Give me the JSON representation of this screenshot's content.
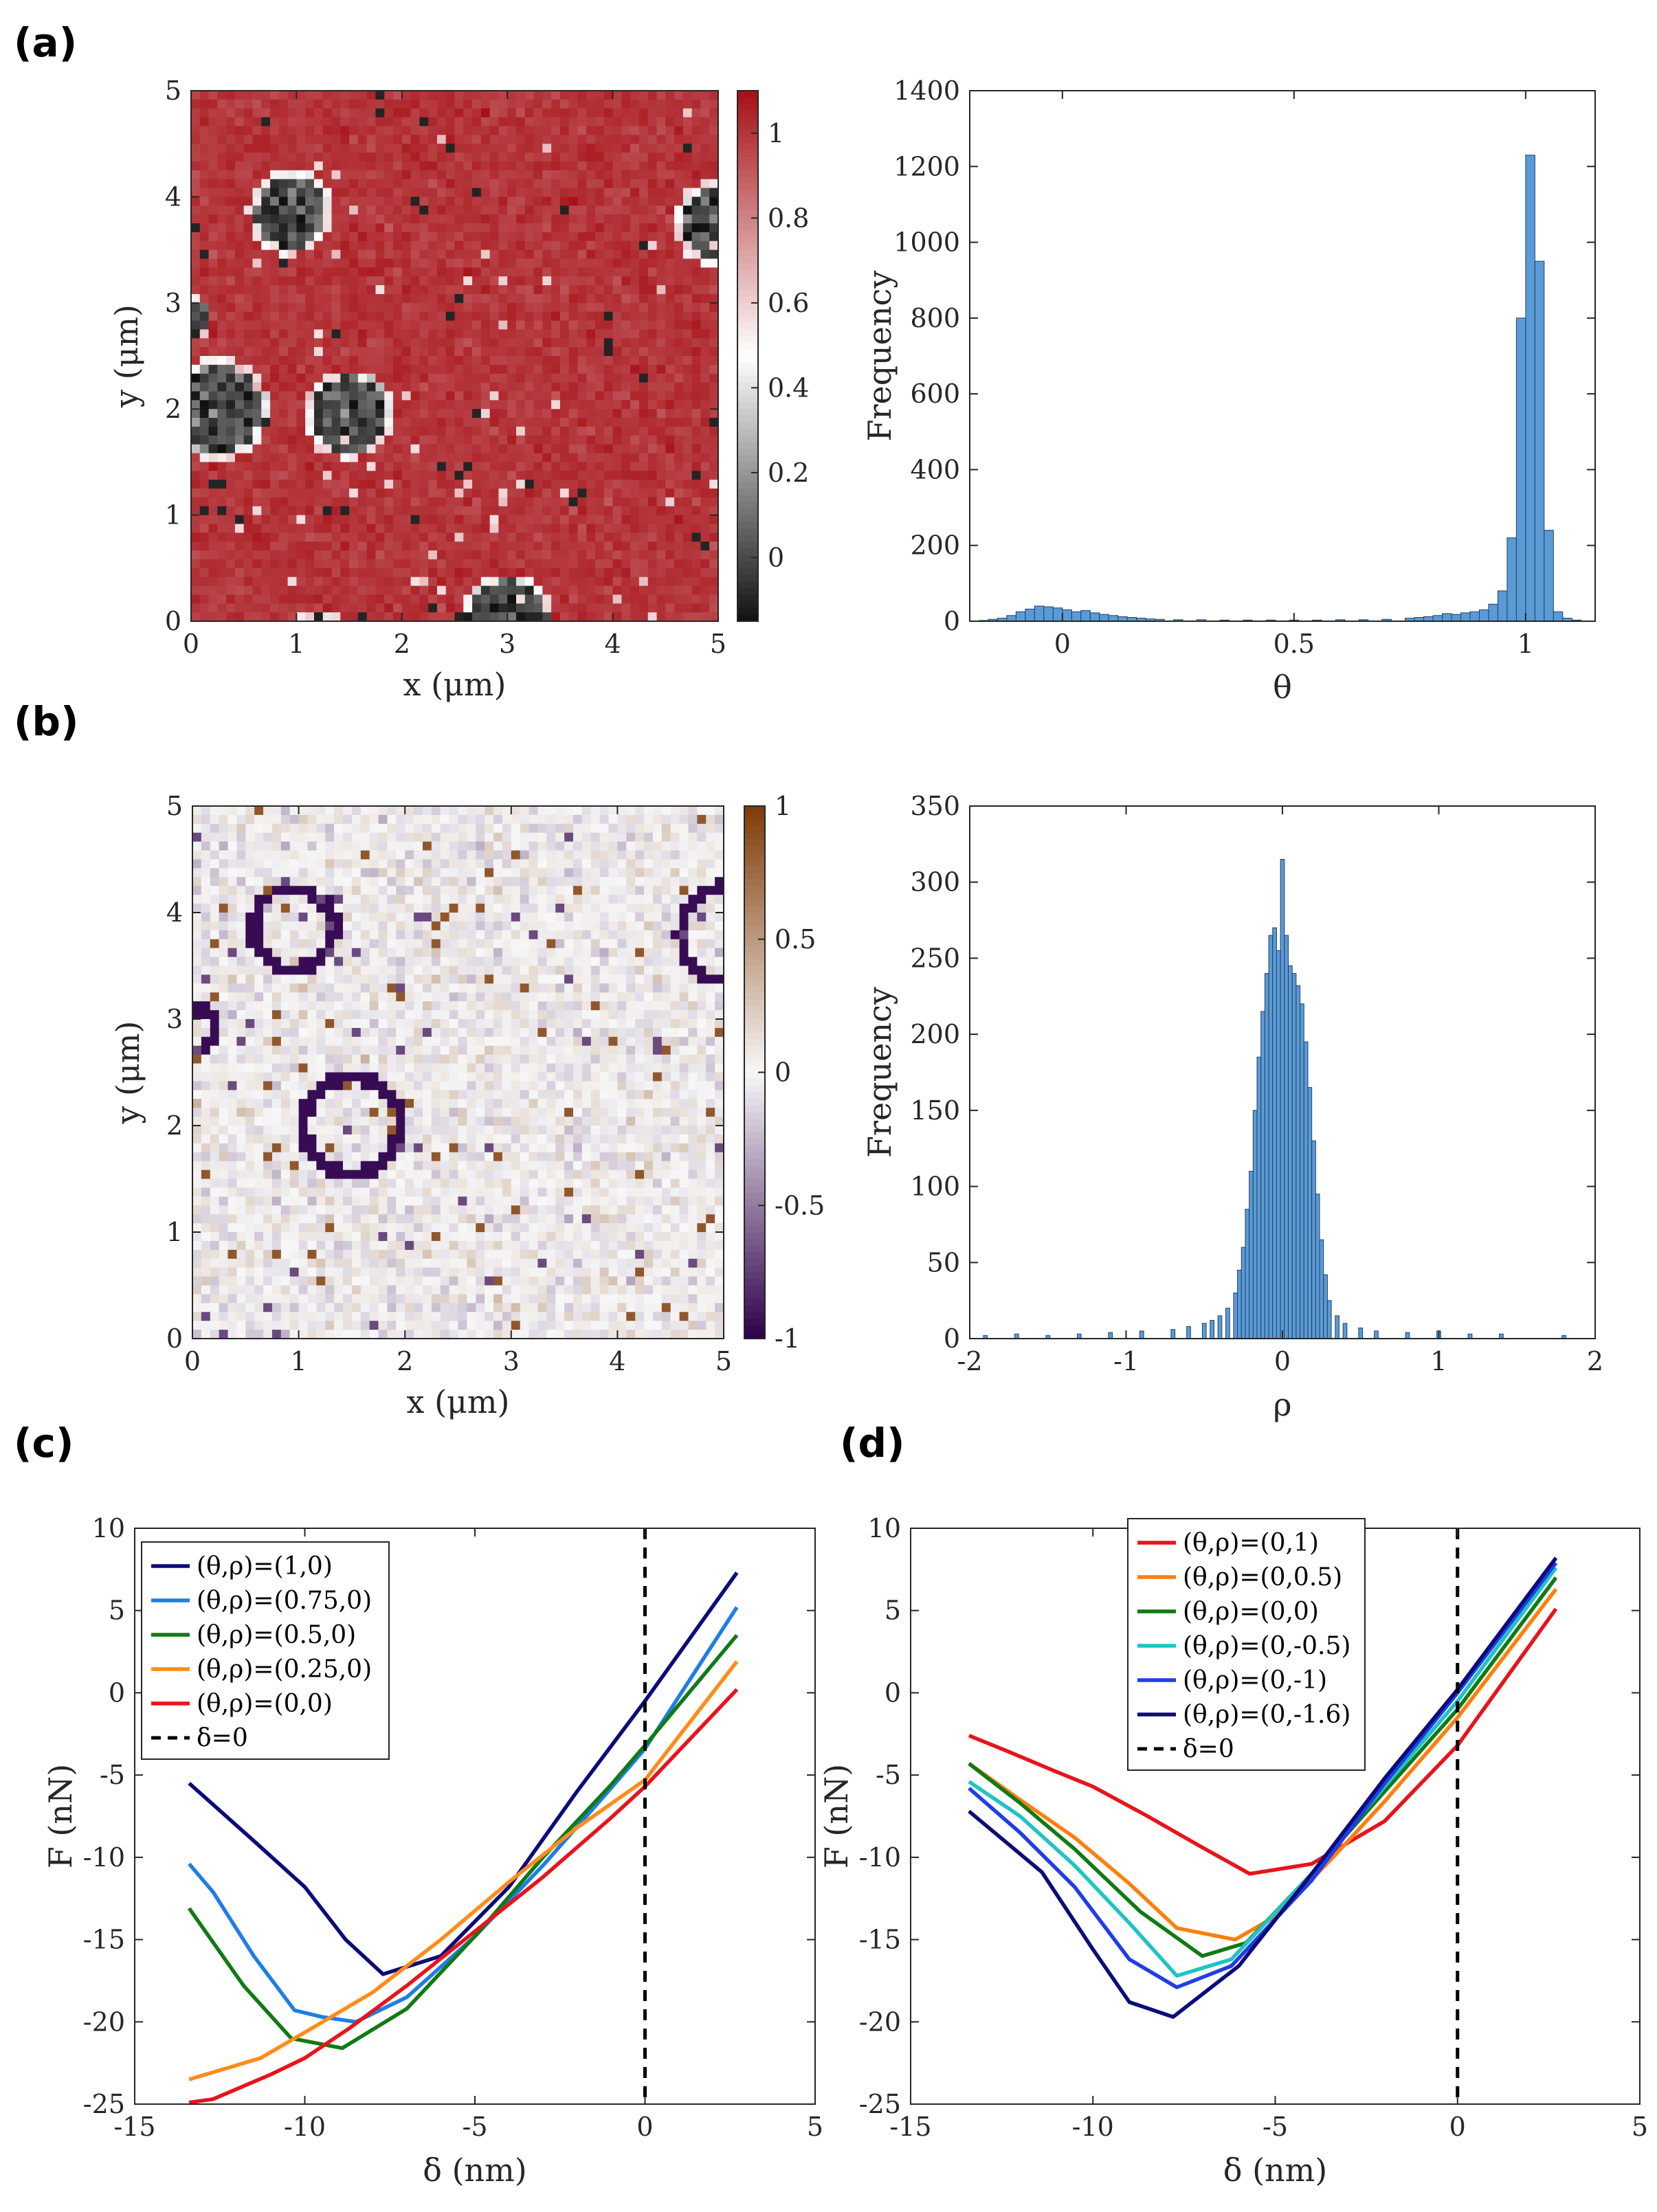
{
  "panels": [
    {
      "id": "a",
      "label": "(a)"
    },
    {
      "id": "b",
      "label": "(b)"
    },
    {
      "id": "c",
      "label": "(c)"
    },
    {
      "id": "d",
      "label": "(d)"
    }
  ],
  "chart_data": [
    {
      "panel": "a-map",
      "type": "heatmap",
      "xlabel": "x (μm)",
      "ylabel": "y (μm)",
      "xlim": [
        0,
        5
      ],
      "ylim": [
        0,
        5
      ],
      "xticks": [
        "0",
        "1",
        "2",
        "3",
        "4",
        "5"
      ],
      "yticks": [
        "0",
        "1",
        "2",
        "3",
        "4",
        "5"
      ],
      "colorbar": {
        "ticks": [
          "0",
          "0.2",
          "0.4",
          "0.6",
          "0.8",
          "1"
        ],
        "range": [
          -0.15,
          1.1
        ],
        "colors": [
          "#111111",
          "#ffffff",
          "#a50f15"
        ]
      },
      "grid": 60,
      "base_value": 1.0,
      "holes": [
        {
          "x": 0.25,
          "y": 2.0,
          "r": 0.5
        },
        {
          "x": 1.5,
          "y": 1.95,
          "r": 0.42
        },
        {
          "x": 0.95,
          "y": 3.85,
          "r": 0.4
        },
        {
          "x": 5.05,
          "y": 3.75,
          "r": 0.45
        },
        {
          "x": 0.0,
          "y": 2.85,
          "r": 0.2
        },
        {
          "x": 3.0,
          "y": 0.0,
          "r": 0.45
        },
        {
          "x": 1.2,
          "y": -0.25,
          "r": 0.35
        }
      ]
    },
    {
      "panel": "a-hist",
      "type": "bar",
      "xlabel": "θ",
      "ylabel": "Frequency",
      "xlim": [
        -0.2,
        1.15
      ],
      "ylim": [
        0,
        1400
      ],
      "xticks": [
        "0",
        "0.5",
        "1"
      ],
      "yticks": [
        "0",
        "200",
        "400",
        "600",
        "800",
        "1000",
        "1200",
        "1400"
      ],
      "bin_width": 0.02,
      "bins_x": [
        -0.17,
        -0.15,
        -0.13,
        -0.11,
        -0.09,
        -0.07,
        -0.05,
        -0.03,
        -0.01,
        0.01,
        0.03,
        0.05,
        0.07,
        0.09,
        0.11,
        0.13,
        0.15,
        0.17,
        0.19,
        0.21,
        0.25,
        0.3,
        0.35,
        0.4,
        0.45,
        0.5,
        0.55,
        0.6,
        0.65,
        0.7,
        0.75,
        0.77,
        0.79,
        0.81,
        0.83,
        0.85,
        0.87,
        0.89,
        0.91,
        0.93,
        0.95,
        0.97,
        0.99,
        1.01,
        1.03,
        1.05,
        1.07,
        1.09,
        1.11
      ],
      "values": [
        2,
        5,
        8,
        15,
        25,
        32,
        40,
        38,
        35,
        30,
        25,
        28,
        22,
        18,
        15,
        12,
        10,
        8,
        6,
        5,
        4,
        4,
        3,
        3,
        3,
        3,
        3,
        4,
        4,
        5,
        8,
        10,
        12,
        15,
        20,
        18,
        22,
        25,
        30,
        45,
        80,
        220,
        800,
        1230,
        950,
        240,
        25,
        8,
        3
      ]
    },
    {
      "panel": "b-map",
      "type": "heatmap",
      "xlabel": "x (μm)",
      "ylabel": "y (μm)",
      "xlim": [
        0,
        5
      ],
      "ylim": [
        0,
        5
      ],
      "xticks": [
        "0",
        "1",
        "2",
        "3",
        "4",
        "5"
      ],
      "yticks": [
        "0",
        "1",
        "2",
        "3",
        "4",
        "5"
      ],
      "colorbar": {
        "ticks": [
          "-1",
          "-0.5",
          "0",
          "0.5",
          "1"
        ],
        "range": [
          -1,
          1
        ],
        "colors": [
          "#2d004b",
          "#f7f7f7",
          "#7f3b08"
        ]
      },
      "grid": 60,
      "rings": [
        {
          "x": 0.95,
          "y": 3.85,
          "r": 0.38
        },
        {
          "x": 1.5,
          "y": 2.0,
          "r": 0.45
        },
        {
          "x": 5.05,
          "y": 3.8,
          "r": 0.45
        },
        {
          "x": 0.0,
          "y": 2.9,
          "r": 0.2
        }
      ]
    },
    {
      "panel": "b-hist",
      "type": "bar",
      "xlabel": "ρ",
      "ylabel": "Frequency",
      "xlim": [
        -2,
        2
      ],
      "ylim": [
        0,
        350
      ],
      "xticks": [
        "-2",
        "-1",
        "0",
        "1",
        "2"
      ],
      "yticks": [
        "0",
        "50",
        "100",
        "150",
        "200",
        "250",
        "300",
        "350"
      ],
      "bin_width": 0.025,
      "bins_x": [
        -1.9,
        -1.7,
        -1.5,
        -1.3,
        -1.1,
        -0.9,
        -0.7,
        -0.6,
        -0.5,
        -0.45,
        -0.4,
        -0.35,
        -0.3,
        -0.275,
        -0.25,
        -0.225,
        -0.2,
        -0.175,
        -0.15,
        -0.125,
        -0.1,
        -0.075,
        -0.05,
        -0.025,
        0.0,
        0.025,
        0.05,
        0.075,
        0.1,
        0.125,
        0.15,
        0.175,
        0.2,
        0.225,
        0.25,
        0.275,
        0.3,
        0.35,
        0.4,
        0.5,
        0.6,
        0.8,
        1.0,
        1.2,
        1.4,
        1.8
      ],
      "values": [
        2,
        3,
        2,
        3,
        4,
        5,
        6,
        8,
        10,
        12,
        15,
        20,
        30,
        45,
        60,
        85,
        110,
        150,
        185,
        215,
        240,
        265,
        270,
        255,
        315,
        265,
        245,
        240,
        232,
        220,
        195,
        165,
        130,
        95,
        65,
        42,
        25,
        15,
        10,
        7,
        5,
        4,
        5,
        3,
        3,
        2
      ]
    },
    {
      "panel": "c",
      "type": "line",
      "xlabel": "δ (nm)",
      "ylabel": "F (nN)",
      "xlim": [
        -15,
        5
      ],
      "ylim": [
        -25,
        10
      ],
      "xticks": [
        "-15",
        "-10",
        "-5",
        "0",
        "5"
      ],
      "yticks": [
        "-25",
        "-20",
        "-15",
        "-10",
        "-5",
        "0",
        "5",
        "10"
      ],
      "legend_position": "top-left",
      "vline": {
        "x": 0,
        "label": "δ=0"
      },
      "series": [
        {
          "name": "(θ,ρ)=(1,0)",
          "color": "#0b0b7a",
          "x": [
            -13.4,
            -11.5,
            -10,
            -8.8,
            -7.7,
            -6,
            -4,
            -2,
            0,
            2.7
          ],
          "y": [
            -5.5,
            -9,
            -11.8,
            -15,
            -17.1,
            -16,
            -11.8,
            -6,
            -0.5,
            7.3
          ]
        },
        {
          "name": "(θ,ρ)=(0.75,0)",
          "color": "#1f7ee6",
          "x": [
            -13.4,
            -12.7,
            -11.5,
            -10.3,
            -9.5,
            -8.5,
            -7,
            -5,
            -3,
            -1,
            0,
            2.7
          ],
          "y": [
            -10.4,
            -12.1,
            -16,
            -19.3,
            -19.7,
            -20,
            -18.5,
            -14.8,
            -10.5,
            -5.8,
            -3.4,
            5.2
          ]
        },
        {
          "name": "(θ,ρ)=(0.5,0)",
          "color": "#117a14",
          "x": [
            -13.4,
            -11.8,
            -10.4,
            -8.9,
            -7,
            -5,
            -3,
            -1,
            0,
            2.7
          ],
          "y": [
            -13.1,
            -17.8,
            -21,
            -21.6,
            -19.2,
            -14.8,
            -10,
            -5.6,
            -3.2,
            3.5
          ]
        },
        {
          "name": "(θ,ρ)=(0.25,0)",
          "color": "#ff8c1a",
          "x": [
            -13.4,
            -11.3,
            -9.8,
            -8,
            -6,
            -4,
            -2,
            0,
            2.7
          ],
          "y": [
            -23.5,
            -22.2,
            -20.4,
            -18.2,
            -15,
            -11.5,
            -8.2,
            -5.3,
            1.9
          ]
        },
        {
          "name": "(θ,ρ)=(0,0)",
          "color": "#e8141c",
          "x": [
            -13.4,
            -12.7,
            -11,
            -10,
            -8.7,
            -7,
            -5,
            -3,
            -1,
            0,
            2.7
          ],
          "y": [
            -24.9,
            -24.7,
            -23.2,
            -22.2,
            -20.4,
            -17.8,
            -14.5,
            -11.2,
            -7.6,
            -5.7,
            0.2
          ]
        }
      ]
    },
    {
      "panel": "d",
      "type": "line",
      "xlabel": "δ (nm)",
      "ylabel": "F (nN)",
      "xlim": [
        -15,
        5
      ],
      "ylim": [
        -25,
        10
      ],
      "xticks": [
        "-15",
        "-10",
        "-5",
        "0",
        "5"
      ],
      "yticks": [
        "-25",
        "-20",
        "-15",
        "-10",
        "-5",
        "0",
        "5",
        "10"
      ],
      "legend_position": "top",
      "vline": {
        "x": 0,
        "label": "δ=0"
      },
      "series": [
        {
          "name": "(θ,ρ)=(0,1)",
          "color": "#e8141c",
          "x": [
            -13.4,
            -12.4,
            -11,
            -10,
            -8.5,
            -7,
            -5.7,
            -4,
            -2,
            0,
            2.7
          ],
          "y": [
            -2.6,
            -3.5,
            -4.8,
            -5.7,
            -7.5,
            -9.4,
            -11,
            -10.4,
            -7.8,
            -3.2,
            5.1
          ]
        },
        {
          "name": "(θ,ρ)=(0,0.5)",
          "color": "#ff7f0e",
          "x": [
            -13.4,
            -12,
            -10.5,
            -9,
            -7.7,
            -6.1,
            -5,
            -3.5,
            -2,
            0,
            2.7
          ],
          "y": [
            -4.3,
            -6.5,
            -8.8,
            -11.6,
            -14.3,
            -15,
            -13.6,
            -10.2,
            -6.6,
            -1.5,
            6.3
          ]
        },
        {
          "name": "(θ,ρ)=(0,0)",
          "color": "#117a14",
          "x": [
            -13.4,
            -12,
            -10.5,
            -8.7,
            -7,
            -5.8,
            -4,
            -2,
            0,
            2.7
          ],
          "y": [
            -4.3,
            -6.7,
            -9.5,
            -13.3,
            -16,
            -15.2,
            -11,
            -6,
            -1,
            7.0
          ]
        },
        {
          "name": "(θ,ρ)=(0,-0.5)",
          "color": "#1fc4c4",
          "x": [
            -13.4,
            -12,
            -10.5,
            -9,
            -7.7,
            -6.2,
            -4,
            -2,
            0,
            2.7
          ],
          "y": [
            -5.4,
            -7.5,
            -10.5,
            -14,
            -17.2,
            -16.2,
            -11,
            -5.7,
            -0.5,
            7.6
          ]
        },
        {
          "name": "(θ,ρ)=(0,-1)",
          "color": "#1f3ee8",
          "x": [
            -13.4,
            -12,
            -10.5,
            -9,
            -7.7,
            -6.2,
            -4,
            -2,
            0,
            2.7
          ],
          "y": [
            -5.8,
            -8.5,
            -11.8,
            -16.2,
            -17.9,
            -16.6,
            -11.4,
            -5.5,
            0,
            7.9
          ]
        },
        {
          "name": "(θ,ρ)=(0,-1.6)",
          "color": "#0b0b7a",
          "x": [
            -13.4,
            -11.4,
            -10,
            -9,
            -7.8,
            -6,
            -4,
            -2,
            0,
            2.7
          ],
          "y": [
            -7.2,
            -10.9,
            -15.6,
            -18.8,
            -19.7,
            -16.6,
            -11,
            -5.2,
            0.2,
            8.2
          ]
        }
      ]
    }
  ]
}
